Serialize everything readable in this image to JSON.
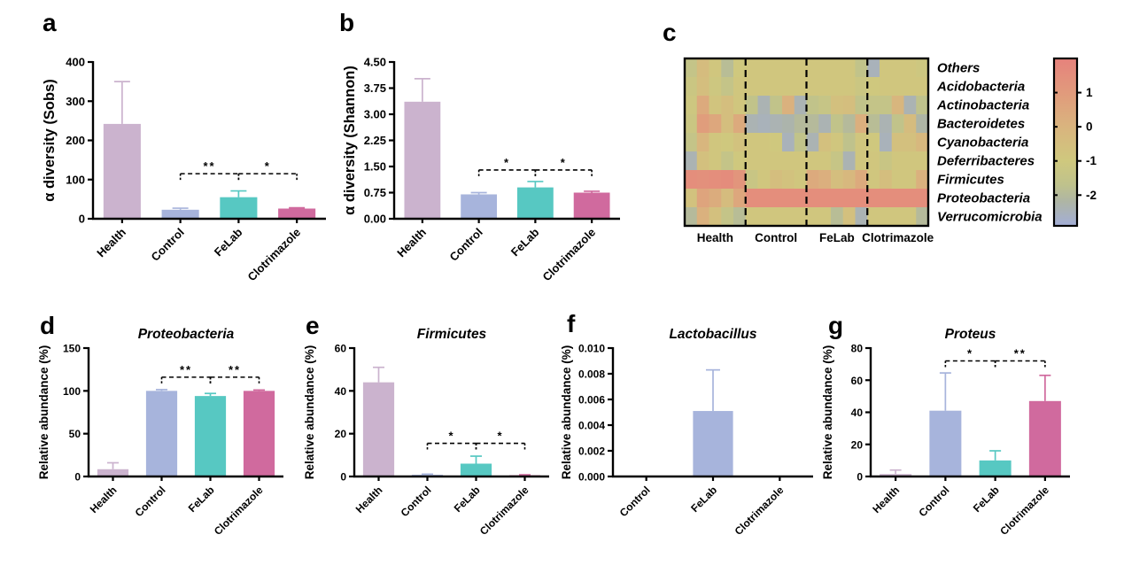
{
  "figure": {
    "background": "#ffffff"
  },
  "palette": {
    "health": "#cbb3ce",
    "control": "#a7b4dc",
    "felab": "#57c8c2",
    "clotrimazole": "#d06a9e",
    "axis": "#000000",
    "significance_line": "#000000"
  },
  "chart_data": [
    {
      "panel": "a",
      "type": "bar",
      "title": "",
      "ylabel": "α diversity (Sobs)",
      "categories": [
        "Health",
        "Control",
        "FeLab",
        "Clotrimazole"
      ],
      "values": [
        242,
        23,
        55,
        26
      ],
      "errors": [
        108,
        4,
        16,
        2
      ],
      "bar_colors": [
        "#cbb3ce",
        "#a7b4dc",
        "#57c8c2",
        "#d06a9e"
      ],
      "ylim": [
        0,
        400
      ],
      "yticks": [
        "0",
        "100",
        "200",
        "300",
        "400"
      ],
      "grid": false,
      "significance": [
        {
          "from": "Control",
          "to": "FeLab",
          "label": "**",
          "y": 115
        },
        {
          "from": "FeLab",
          "to": "Clotrimazole",
          "label": "*",
          "y": 115
        }
      ]
    },
    {
      "panel": "b",
      "type": "bar",
      "title": "",
      "ylabel": "α diversity (Shannon)",
      "categories": [
        "Health",
        "Control",
        "FeLab",
        "Clotrimazole"
      ],
      "values": [
        3.36,
        0.7,
        0.9,
        0.75
      ],
      "errors": [
        0.66,
        0.05,
        0.17,
        0.04
      ],
      "bar_colors": [
        "#cbb3ce",
        "#a7b4dc",
        "#57c8c2",
        "#d06a9e"
      ],
      "ylim": [
        0,
        4.5
      ],
      "yticks": [
        "0.00",
        "0.75",
        "1.50",
        "2.25",
        "3.00",
        "3.75",
        "4.50"
      ],
      "grid": false,
      "significance": [
        {
          "from": "Control",
          "to": "FeLab",
          "label": "*",
          "y": 1.4
        },
        {
          "from": "FeLab",
          "to": "Clotrimazole",
          "label": "*",
          "y": 1.4
        }
      ]
    },
    {
      "panel": "c",
      "type": "heatmap",
      "rows": [
        "Others",
        "Acidobacteria",
        "Actinobacteria",
        "Bacteroidetes",
        "Cyanobacteria",
        "Deferribacteres",
        "Firmicutes",
        "Proteobacteria",
        "Verrucomicrobia"
      ],
      "col_groups": [
        "Health",
        "Control",
        "FeLab",
        "Clotrimazole"
      ],
      "cols_per_group": 5,
      "values": [
        [
          -1.5,
          -0.4,
          -0.9,
          -1.9,
          -1.0,
          -0.9,
          -0.9,
          -0.9,
          -0.9,
          -0.9,
          -0.9,
          -0.9,
          -0.9,
          -0.9,
          -1.6,
          -2.5,
          -0.9,
          -0.9,
          -0.9,
          -1.1
        ],
        [
          -1.2,
          -0.5,
          -1.1,
          -1.5,
          -0.9,
          -0.9,
          -0.9,
          -0.9,
          -0.9,
          -0.9,
          -0.9,
          -0.9,
          -0.9,
          -0.9,
          -1.2,
          -1.0,
          -0.9,
          -0.9,
          -0.9,
          -0.9
        ],
        [
          -1.1,
          0.4,
          -0.8,
          -0.5,
          -0.9,
          -1.6,
          -2.4,
          -1.6,
          0.1,
          -2.4,
          -1.6,
          -1.4,
          -0.6,
          -0.5,
          -1.6,
          -1.5,
          -1.5,
          -0.1,
          -2.4,
          -1.7
        ],
        [
          -1.2,
          0.9,
          0.5,
          -0.5,
          0.4,
          -2.4,
          -2.5,
          -2.4,
          -2.3,
          -2.0,
          -2.0,
          -2.4,
          -1.6,
          -2.0,
          0.2,
          -1.9,
          -2.4,
          -1.6,
          -0.4,
          -2.2
        ],
        [
          -1.5,
          -0.1,
          -0.9,
          -1.0,
          -0.7,
          -0.9,
          -0.9,
          -1.0,
          -2.5,
          -1.6,
          -2.4,
          -0.6,
          -0.9,
          -1.7,
          -0.9,
          -1.0,
          -2.5,
          -0.6,
          -0.6,
          -0.2
        ],
        [
          -2.4,
          -0.6,
          -0.9,
          -1.5,
          -1.0,
          -0.9,
          -0.9,
          -0.9,
          -0.9,
          -0.9,
          -0.9,
          -0.9,
          -1.4,
          -2.4,
          -0.9,
          -0.9,
          -1.3,
          -0.9,
          -0.9,
          -0.9
        ],
        [
          1.5,
          1.4,
          1.5,
          1.6,
          1.2,
          -1.3,
          -0.9,
          -0.5,
          -0.7,
          -0.9,
          0.4,
          0.2,
          -0.5,
          -0.2,
          0.4,
          -0.9,
          -0.5,
          -0.9,
          -0.9,
          0.1
        ],
        [
          -0.7,
          0.6,
          0.3,
          -0.4,
          0.5,
          1.5,
          1.5,
          1.5,
          1.5,
          1.5,
          1.5,
          1.5,
          1.5,
          1.5,
          1.5,
          1.5,
          1.5,
          1.5,
          1.5,
          1.5
        ],
        [
          -2.0,
          0.1,
          -0.6,
          -1.5,
          -1.9,
          -0.9,
          -0.9,
          -0.9,
          -0.9,
          -0.9,
          -0.9,
          -0.9,
          -1.9,
          -0.6,
          -2.4,
          -0.9,
          -0.9,
          -0.9,
          -0.9,
          -2.0
        ]
      ],
      "colorbar": {
        "ticks": [
          "1",
          "0",
          "-1",
          "-2"
        ],
        "domain": [
          2.0,
          -2.9
        ],
        "stops": [
          [
            2.0,
            "#e6827c"
          ],
          [
            1.0,
            "#e19a7c"
          ],
          [
            0.0,
            "#d9b47e"
          ],
          [
            -1.0,
            "#cfc87e"
          ],
          [
            -1.7,
            "#bfc28c"
          ],
          [
            -2.2,
            "#aeb5a5"
          ],
          [
            -2.9,
            "#a3aed7"
          ]
        ]
      }
    },
    {
      "panel": "d",
      "type": "bar",
      "title": "Proteobacteria",
      "ylabel": "Relative abundance (%)",
      "categories": [
        "Health",
        "Control",
        "FeLab",
        "Clotrimazole"
      ],
      "values": [
        8.5,
        100,
        94,
        100
      ],
      "errors": [
        7.5,
        1.5,
        3,
        1
      ],
      "bar_colors": [
        "#cbb3ce",
        "#a7b4dc",
        "#57c8c2",
        "#d06a9e"
      ],
      "ylim": [
        0,
        150
      ],
      "yticks": [
        "0",
        "50",
        "100",
        "150"
      ],
      "grid": false,
      "significance": [
        {
          "from": "Control",
          "to": "FeLab",
          "label": "**",
          "y": 116
        },
        {
          "from": "FeLab",
          "to": "Clotrimazole",
          "label": "**",
          "y": 116
        }
      ]
    },
    {
      "panel": "e",
      "type": "bar",
      "title": "Firmicutes",
      "ylabel": "Relative abundance (%)",
      "categories": [
        "Health",
        "Control",
        "FeLab",
        "Clotrimazole"
      ],
      "values": [
        44,
        0.8,
        6,
        0.6
      ],
      "errors": [
        7,
        0.3,
        3.5,
        0.2
      ],
      "bar_colors": [
        "#cbb3ce",
        "#a7b4dc",
        "#57c8c2",
        "#d06a9e"
      ],
      "ylim": [
        0,
        60
      ],
      "yticks": [
        "0",
        "20",
        "40",
        "60"
      ],
      "grid": false,
      "significance": [
        {
          "from": "Control",
          "to": "FeLab",
          "label": "*",
          "y": 15.5
        },
        {
          "from": "FeLab",
          "to": "Clotrimazole",
          "label": "*",
          "y": 15.5
        }
      ]
    },
    {
      "panel": "f",
      "type": "bar",
      "title": "Lactobacillus",
      "ylabel": "Relative abundance (%)",
      "categories": [
        "Control",
        "FeLab",
        "Clotrimazole"
      ],
      "values": [
        0,
        0.0051,
        0
      ],
      "errors": [
        0,
        0.0032,
        0
      ],
      "bar_colors": [
        "#cbb3ce",
        "#a7b4dc",
        "#57c8c2"
      ],
      "ylim": [
        0,
        0.01
      ],
      "yticks": [
        "0.000",
        "0.002",
        "0.004",
        "0.006",
        "0.008",
        "0.010"
      ],
      "grid": false,
      "significance": []
    },
    {
      "panel": "g",
      "type": "bar",
      "title": "Proteus",
      "ylabel": "Relative abundance (%)",
      "categories": [
        "Health",
        "Control",
        "FeLab",
        "Clotrimazole"
      ],
      "values": [
        1.5,
        41,
        10,
        47
      ],
      "errors": [
        2.5,
        23.5,
        6,
        16
      ],
      "bar_colors": [
        "#cbb3ce",
        "#a7b4dc",
        "#57c8c2",
        "#d06a9e"
      ],
      "ylim": [
        0,
        80
      ],
      "yticks": [
        "0",
        "20",
        "40",
        "60",
        "80"
      ],
      "grid": false,
      "significance": [
        {
          "from": "Control",
          "to": "FeLab",
          "label": "*",
          "y": 72
        },
        {
          "from": "FeLab",
          "to": "Clotrimazole",
          "label": "**",
          "y": 72
        }
      ]
    }
  ]
}
